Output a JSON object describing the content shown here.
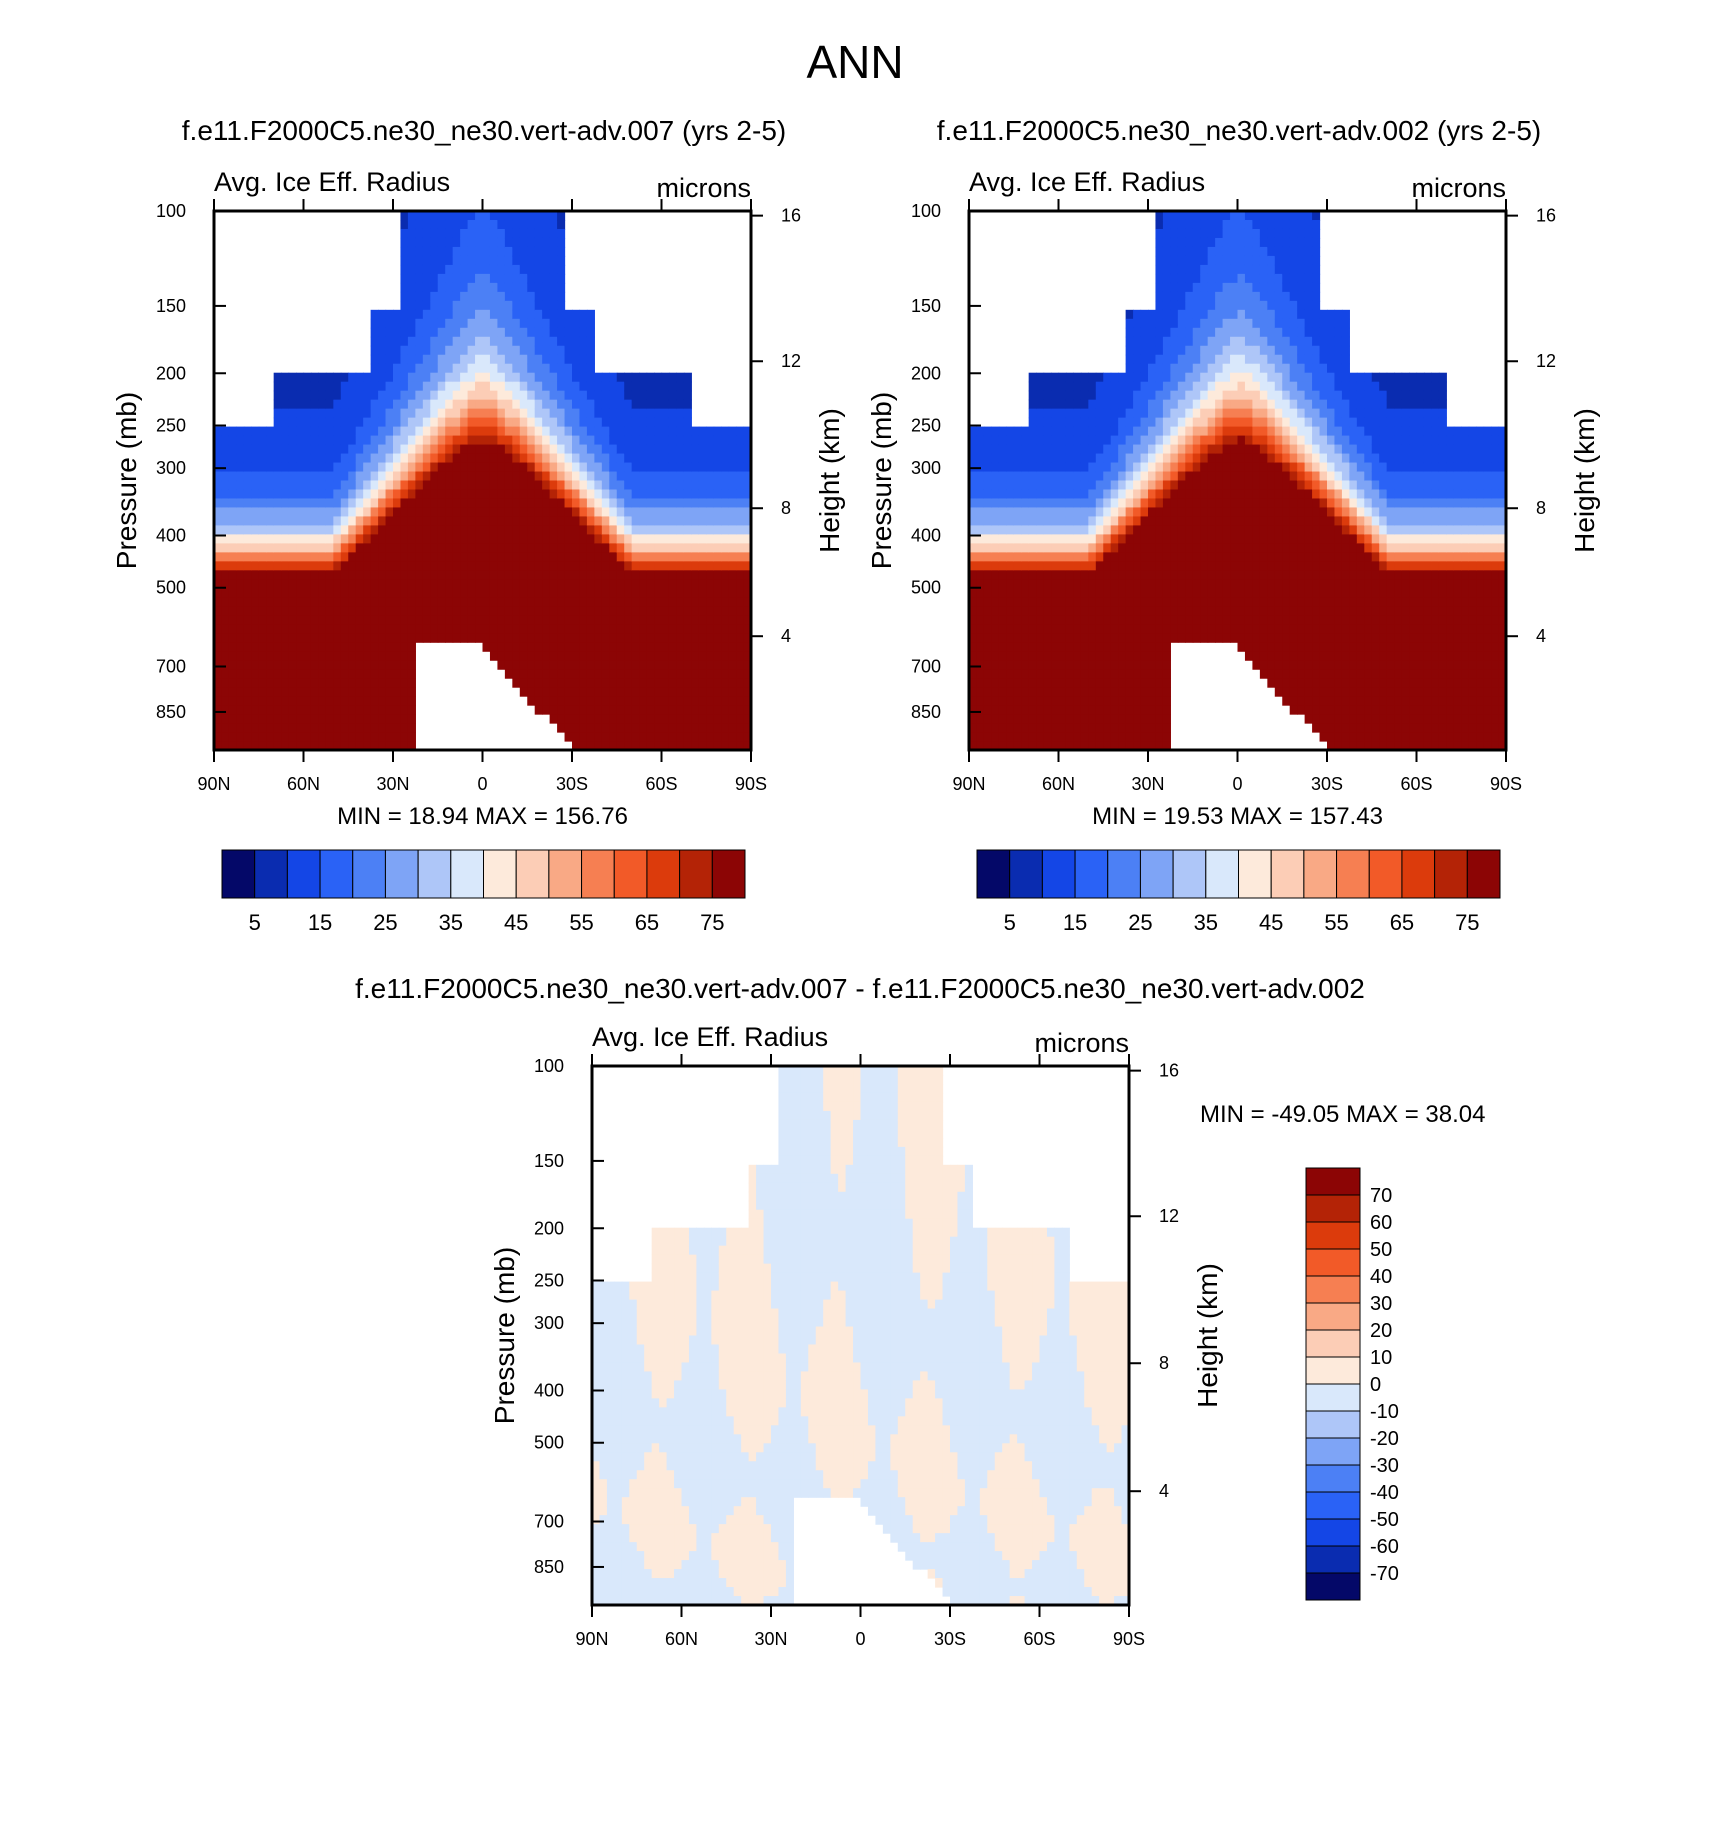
{
  "figure": {
    "title": "ANN"
  },
  "panels": [
    {
      "case_title": "f.e11.F2000C5.ne30_ne30.vert-adv.007 (yrs 2-5)",
      "variable": "Avg. Ice Eff. Radius",
      "units": "microns",
      "ylabel_left": "Pressure (mb)",
      "ylabel_right": "Height (km)",
      "stats": "MIN =  18.94  MAX = 156.76",
      "pressure_ticks": [
        "100",
        "150",
        "200",
        "250",
        "300",
        "400",
        "500",
        "700",
        "850"
      ],
      "height_ticks": [
        "16",
        "12",
        "8",
        "4"
      ],
      "lat_ticks": [
        "90N",
        "60N",
        "30N",
        "0",
        "30S",
        "60S",
        "90S"
      ],
      "colorbar_labels": [
        "5",
        "15",
        "25",
        "35",
        "45",
        "55",
        "65",
        "75"
      ],
      "colorbar_colors": [
        "#040868",
        "#0a2cb0",
        "#1446e6",
        "#2a62f6",
        "#4c80f5",
        "#7ea4f6",
        "#aec6f8",
        "#d9e8fb",
        "#fdeadb",
        "#fccdb6",
        "#f9a985",
        "#f67f52",
        "#f25a28",
        "#dc3b0c",
        "#b42306",
        "#8c0505"
      ]
    },
    {
      "case_title": "f.e11.F2000C5.ne30_ne30.vert-adv.002 (yrs 2-5)",
      "variable": "Avg. Ice Eff. Radius",
      "units": "microns",
      "ylabel_left": "Pressure (mb)",
      "ylabel_right": "Height (km)",
      "stats": "MIN =  19.53  MAX = 157.43",
      "pressure_ticks": [
        "100",
        "150",
        "200",
        "250",
        "300",
        "400",
        "500",
        "700",
        "850"
      ],
      "height_ticks": [
        "16",
        "12",
        "8",
        "4"
      ],
      "lat_ticks": [
        "90N",
        "60N",
        "30N",
        "0",
        "30S",
        "60S",
        "90S"
      ],
      "colorbar_labels": [
        "5",
        "15",
        "25",
        "35",
        "45",
        "55",
        "65",
        "75"
      ],
      "colorbar_colors": [
        "#040868",
        "#0a2cb0",
        "#1446e6",
        "#2a62f6",
        "#4c80f5",
        "#7ea4f6",
        "#aec6f8",
        "#d9e8fb",
        "#fdeadb",
        "#fccdb6",
        "#f9a985",
        "#f67f52",
        "#f25a28",
        "#dc3b0c",
        "#b42306",
        "#8c0505"
      ]
    },
    {
      "case_title": "f.e11.F2000C5.ne30_ne30.vert-adv.007 - f.e11.F2000C5.ne30_ne30.vert-adv.002",
      "variable": "Avg. Ice Eff. Radius",
      "units": "microns",
      "ylabel_left": "Pressure (mb)",
      "ylabel_right": "Height (km)",
      "stats": "MIN = -49.05  MAX =  38.04",
      "pressure_ticks": [
        "100",
        "150",
        "200",
        "250",
        "300",
        "400",
        "500",
        "700",
        "850"
      ],
      "height_ticks": [
        "16",
        "12",
        "8",
        "4"
      ],
      "lat_ticks": [
        "90N",
        "60N",
        "30N",
        "0",
        "30S",
        "60S",
        "90S"
      ],
      "colorbar_labels": [
        "70",
        "60",
        "50",
        "40",
        "30",
        "20",
        "10",
        "0",
        "-10",
        "-20",
        "-30",
        "-40",
        "-50",
        "-60",
        "-70"
      ],
      "colorbar_colors": [
        "#8c0505",
        "#b42306",
        "#dc3b0c",
        "#f25a28",
        "#f67f52",
        "#f9a985",
        "#fccdb6",
        "#fdeadb",
        "#d9e8fb",
        "#aec6f8",
        "#7ea4f6",
        "#4c80f5",
        "#2a62f6",
        "#1446e6",
        "#0a2cb0",
        "#040868"
      ]
    }
  ],
  "chart_data": [
    {
      "type": "heatmap",
      "title": "f.e11.F2000C5.ne30_ne30.vert-adv.007 (yrs 2-5)",
      "subtitle": "Avg. Ice Eff. Radius",
      "units": "microns",
      "xlabel": "",
      "ylabel": "Pressure (mb)",
      "ylabel_right": "Height (km)",
      "x_ticks": [
        "90N",
        "60N",
        "30N",
        "0",
        "30S",
        "60S",
        "90S"
      ],
      "xlim": [
        90,
        -90
      ],
      "y_scale": "log",
      "y_ticks": [
        100,
        150,
        200,
        250,
        300,
        400,
        500,
        700,
        850
      ],
      "ylim": [
        100,
        1000
      ],
      "min": 18.94,
      "max": 156.76,
      "levels": [
        5,
        10,
        15,
        20,
        25,
        30,
        35,
        40,
        45,
        50,
        55,
        60,
        65,
        70,
        75
      ],
      "colorbar_labels": [
        5,
        15,
        25,
        35,
        45,
        55,
        65,
        75
      ]
    },
    {
      "type": "heatmap",
      "title": "f.e11.F2000C5.ne30_ne30.vert-adv.002 (yrs 2-5)",
      "subtitle": "Avg. Ice Eff. Radius",
      "units": "microns",
      "xlabel": "",
      "ylabel": "Pressure (mb)",
      "ylabel_right": "Height (km)",
      "x_ticks": [
        "90N",
        "60N",
        "30N",
        "0",
        "30S",
        "60S",
        "90S"
      ],
      "xlim": [
        90,
        -90
      ],
      "y_scale": "log",
      "y_ticks": [
        100,
        150,
        200,
        250,
        300,
        400,
        500,
        700,
        850
      ],
      "ylim": [
        100,
        1000
      ],
      "min": 19.53,
      "max": 157.43,
      "levels": [
        5,
        10,
        15,
        20,
        25,
        30,
        35,
        40,
        45,
        50,
        55,
        60,
        65,
        70,
        75
      ],
      "colorbar_labels": [
        5,
        15,
        25,
        35,
        45,
        55,
        65,
        75
      ]
    },
    {
      "type": "heatmap",
      "title": "f.e11.F2000C5.ne30_ne30.vert-adv.007 - f.e11.F2000C5.ne30_ne30.vert-adv.002",
      "subtitle": "Avg. Ice Eff. Radius",
      "units": "microns",
      "xlabel": "",
      "ylabel": "Pressure (mb)",
      "ylabel_right": "Height (km)",
      "x_ticks": [
        "90N",
        "60N",
        "30N",
        "0",
        "30S",
        "60S",
        "90S"
      ],
      "xlim": [
        90,
        -90
      ],
      "y_scale": "log",
      "y_ticks": [
        100,
        150,
        200,
        250,
        300,
        400,
        500,
        700,
        850
      ],
      "ylim": [
        100,
        1000
      ],
      "min": -49.05,
      "max": 38.04,
      "levels": [
        -70,
        -60,
        -50,
        -40,
        -30,
        -20,
        -10,
        0,
        10,
        20,
        30,
        40,
        50,
        60,
        70
      ],
      "colorbar_labels": [
        70,
        60,
        50,
        40,
        30,
        20,
        10,
        0,
        -10,
        -20,
        -30,
        -40,
        -50,
        -60,
        -70
      ]
    }
  ]
}
